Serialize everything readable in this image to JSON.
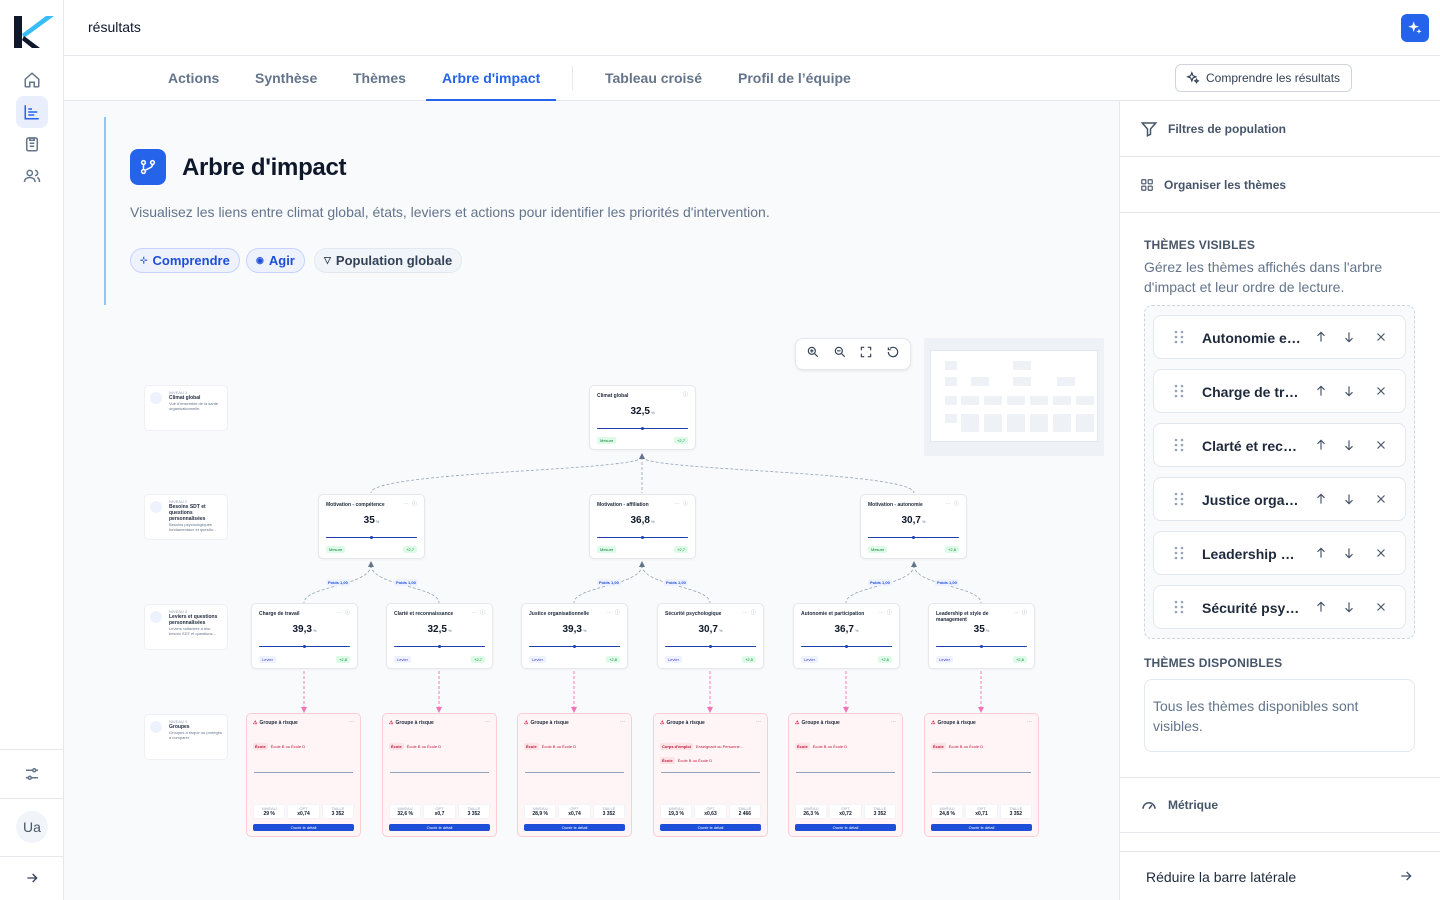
{
  "header": {
    "title": "résultats"
  },
  "tabs": [
    {
      "label": "Actions",
      "active": false
    },
    {
      "label": "Synthèse",
      "active": false
    },
    {
      "label": "Thèmes",
      "active": false
    },
    {
      "label": "Arbre d'impact",
      "active": true
    },
    {
      "label": "Tableau croisé",
      "active": false
    },
    {
      "label": "Profil de l’équipe",
      "active": false
    }
  ],
  "understand_button": "Comprendre les résultats",
  "user": {
    "initials": "Ua"
  },
  "intro": {
    "title": "Arbre d'impact",
    "description": "Visualisez les liens entre climat global, états, leviers et actions pour identifier les priorités d'intervention.",
    "chips": [
      "Comprendre",
      "Agir",
      "Population globale"
    ]
  },
  "levels": [
    {
      "kicker": "NIVEAU 1",
      "name": "Climat global",
      "desc": "Vue d'ensemble de la santé organisationnelle."
    },
    {
      "kicker": "NIVEAU 2",
      "name": "Besoins SDT et questions personnalisées",
      "desc": "Besoins psychologiques fondamentaux et questio..."
    },
    {
      "kicker": "NIVEAU 3",
      "name": "Leviers et questions personnalisées",
      "desc": "Leviers rattachés à leur besoin SDT et questions..."
    },
    {
      "kicker": "NIVEAU 4",
      "name": "Groupes",
      "desc": "Groupes à risque ou protégés à comparer."
    }
  ],
  "tree": {
    "root": {
      "name": "Climat global",
      "value": "32,5",
      "unit": "%",
      "badge": "Mesure",
      "delta": "+2,7"
    },
    "needs": [
      {
        "name": "Motivation - compétence",
        "value": "35",
        "unit": "%",
        "badge": "Mesure",
        "delta": "+2,7"
      },
      {
        "name": "Motivation - affiliation",
        "value": "36,8",
        "unit": "%",
        "badge": "Mesure",
        "delta": "+2,7"
      },
      {
        "name": "Motivation - autonomie",
        "value": "30,7",
        "unit": "%",
        "badge": "Mesure",
        "delta": "+2,8"
      }
    ],
    "edge_label": "Poids 1,00",
    "levers": [
      {
        "name": "Charge de travail",
        "value": "39,3",
        "unit": "%",
        "badge": "Levier",
        "delta": "+2,8"
      },
      {
        "name": "Clarté et reconnaissance",
        "value": "32,5",
        "unit": "%",
        "badge": "Levier",
        "delta": "+2,7"
      },
      {
        "name": "Justice organisationnelle",
        "value": "39,3",
        "unit": "%",
        "badge": "Levier",
        "delta": "+2,8"
      },
      {
        "name": "Sécurité psychologique",
        "value": "30,7",
        "unit": "%",
        "badge": "Levier",
        "delta": "+2,5"
      },
      {
        "name": "Autonomie et participation",
        "value": "36,7",
        "unit": "%",
        "badge": "Levier",
        "delta": "+2,6"
      },
      {
        "name": "Leadership et style de management",
        "value": "35",
        "unit": "%",
        "badge": "Levier",
        "delta": "+2,6"
      }
    ],
    "groups": [
      {
        "title": "Groupe à risque",
        "tag": "École",
        "tag_val": "École B ou École D",
        "tag2": "",
        "tag2_val": "",
        "niveau": "29 %",
        "opt": "x0,74",
        "taille": "3 352",
        "btn": "Ouvrir le détail"
      },
      {
        "title": "Groupe à risque",
        "tag": "École",
        "tag_val": "École B ou École D",
        "tag2": "",
        "tag2_val": "",
        "niveau": "32,6 %",
        "opt": "x0,7",
        "taille": "3 352",
        "btn": "Ouvrir le détail"
      },
      {
        "title": "Groupe à risque",
        "tag": "École",
        "tag_val": "École B ou École D",
        "tag2": "",
        "tag2_val": "",
        "niveau": "28,9 %",
        "opt": "x0,74",
        "taille": "3 352",
        "btn": "Ouvrir le détail"
      },
      {
        "title": "Groupe à risque",
        "tag": "Corps d'emploi",
        "tag_val": "Enseignant ou Personne...",
        "tag2": "École",
        "tag2_val": "École B ou École D",
        "niveau": "19,3 %",
        "opt": "x0,63",
        "taille": "2 466",
        "btn": "Ouvrir le détail"
      },
      {
        "title": "Groupe à risque",
        "tag": "École",
        "tag_val": "École B ou École D",
        "tag2": "",
        "tag2_val": "",
        "niveau": "26,3 %",
        "opt": "x0,72",
        "taille": "3 352",
        "btn": "Ouvrir le détail"
      },
      {
        "title": "Groupe à risque",
        "tag": "École",
        "tag_val": "École B ou École D",
        "tag2": "",
        "tag2_val": "",
        "niveau": "24,8 %",
        "opt": "x0,71",
        "taille": "3 352",
        "btn": "Ouvrir le détail"
      }
    ],
    "stat_labels": [
      "NIVEAU",
      "OPT",
      "TAILLE"
    ]
  },
  "sidebar": {
    "population_filters": "Filtres de population",
    "organize_themes": "Organiser les thèmes",
    "visible_heading": "THÈMES VISIBLES",
    "visible_desc": "Gérez les thèmes affichés dans l'arbre d'impact et leur ordre de lecture.",
    "visible_themes": [
      "Autonomie et participation",
      "Charge de travail",
      "Clarté et reconnaissance",
      "Justice organisationnelle",
      "Leadership et style de management",
      "Sécurité psychologique"
    ],
    "available_heading": "THÈMES DISPONIBLES",
    "available_empty": "Tous les thèmes disponibles sont visibles.",
    "metric": "Métrique",
    "collapse": "Réduire la barre latérale"
  },
  "colors": {
    "accent": "#2563eb",
    "risk": "#e11d48",
    "positive": "#15803d"
  }
}
